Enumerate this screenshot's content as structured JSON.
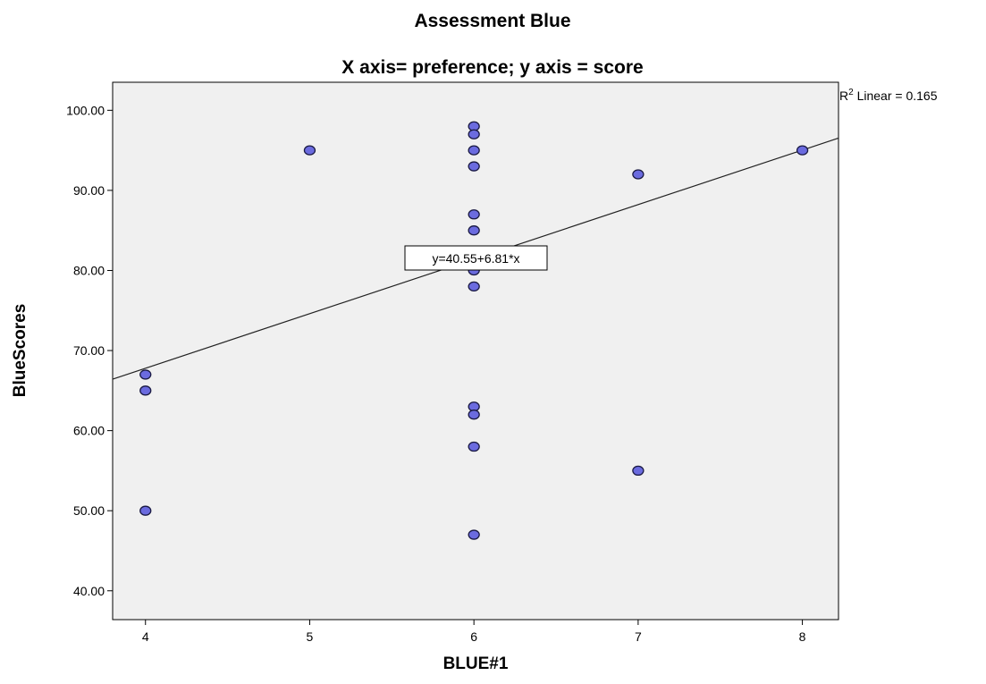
{
  "chart_data": {
    "type": "scatter",
    "title": "Assessment Blue",
    "subtitle": "X axis= preference; y axis = score",
    "xlabel": "BLUE#1",
    "ylabel": "BlueScores",
    "xlim": [
      3.8,
      8.22
    ],
    "ylim": [
      36.4,
      103.5
    ],
    "x_ticks": [
      "4",
      "5",
      "6",
      "7",
      "8"
    ],
    "y_ticks": [
      "40.00",
      "50.00",
      "60.00",
      "70.00",
      "80.00",
      "90.00",
      "100.00"
    ],
    "x_tick_values": [
      4,
      5,
      6,
      7,
      8
    ],
    "y_tick_values": [
      40,
      50,
      60,
      70,
      80,
      90,
      100
    ],
    "points": {
      "x": [
        4,
        4,
        4,
        5,
        6,
        6,
        6,
        6,
        6,
        6,
        6,
        6,
        6,
        6,
        6,
        6,
        7,
        7,
        8
      ],
      "y": [
        67,
        65,
        50,
        95,
        98,
        97,
        95,
        93,
        87,
        85,
        80,
        78,
        63,
        62,
        58,
        47,
        92,
        55,
        95
      ]
    },
    "fit_line": {
      "intercept": 40.55,
      "slope": 6.81
    },
    "equation_label": "y=40.55+6.81*x",
    "r2_label": {
      "prefix": "R",
      "superscript": "2",
      "text": " Linear = 0.165"
    },
    "colors": {
      "plot_bg": "#f0f0f0",
      "point_fill": "#6b6bdf",
      "point_stroke": "#1a1a44",
      "line": "#222222",
      "frame": "#000000"
    }
  }
}
